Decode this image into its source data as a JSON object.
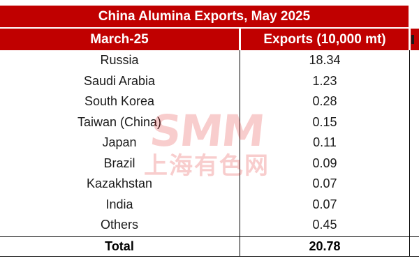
{
  "table": {
    "title": "China Alumina Exports, May 2025",
    "header": {
      "col1": "March-25",
      "col2": "Exports (10,000 mt)",
      "col3": ""
    },
    "rows": [
      {
        "country": "Russia",
        "exports": "18.34"
      },
      {
        "country": "Saudi Arabia",
        "exports": "1.23"
      },
      {
        "country": "South Korea",
        "exports": "0.28"
      },
      {
        "country": "Taiwan (China)",
        "exports": "0.15"
      },
      {
        "country": "Japan",
        "exports": "0.11"
      },
      {
        "country": "Brazil",
        "exports": "0.09"
      },
      {
        "country": "Kazakhstan",
        "exports": "0.07"
      },
      {
        "country": "India",
        "exports": "0.07"
      },
      {
        "country": "Others",
        "exports": "0.45"
      }
    ],
    "total": {
      "label": "Total",
      "value": "20.78"
    }
  },
  "watermark": {
    "logo": "SMM",
    "subtitle": "上海有色网"
  },
  "colors": {
    "header_bg": "#c00000",
    "header_text": "#ffffff",
    "body_text": "#1a1a1a"
  }
}
